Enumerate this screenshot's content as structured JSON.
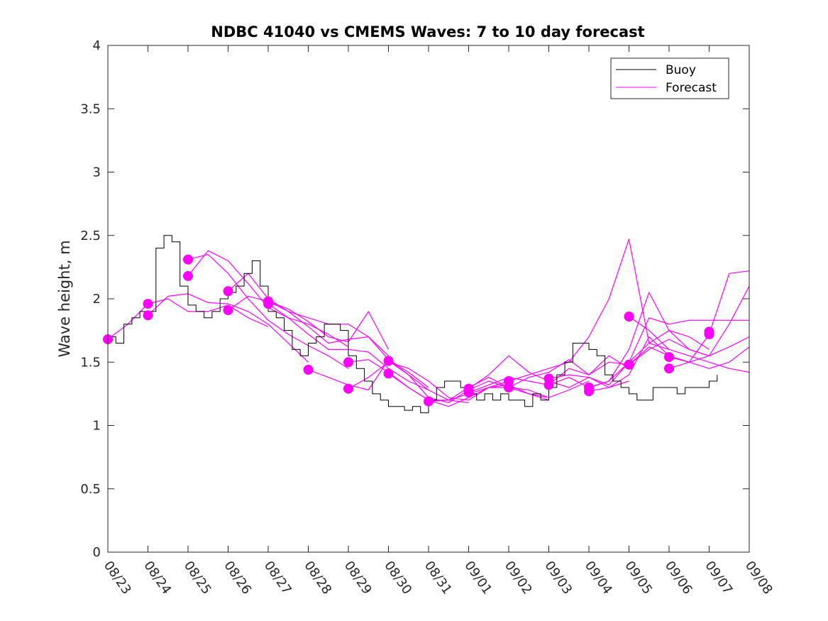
{
  "chart_data": {
    "type": "line",
    "title": "NDBC 41040 vs CMEMS Waves: 7 to 10 day forecast",
    "xlabel": "",
    "ylabel": "Wave height, m",
    "xlim": [
      0,
      16
    ],
    "ylim": [
      0,
      4
    ],
    "x_tick_labels": [
      "08/23",
      "08/24",
      "08/25",
      "08/26",
      "08/27",
      "08/28",
      "08/29",
      "08/30",
      "08/31",
      "09/01",
      "09/02",
      "09/03",
      "09/04",
      "09/05",
      "09/06",
      "09/07",
      "09/08"
    ],
    "y_tick_labels": [
      "0",
      "0.5",
      "1",
      "1.5",
      "2",
      "2.5",
      "3",
      "3.5",
      "4"
    ],
    "legend": {
      "position": "top-right",
      "entries": [
        "Buoy",
        "Forecast"
      ]
    },
    "colors": {
      "buoy": "#000000",
      "forecast": "#ff00ff"
    },
    "buoy_series": {
      "name": "Buoy",
      "x": [
        0,
        0.2,
        0.4,
        0.6,
        0.8,
        1.0,
        1.2,
        1.4,
        1.6,
        1.8,
        2.0,
        2.2,
        2.4,
        2.6,
        2.8,
        3.0,
        3.2,
        3.4,
        3.6,
        3.8,
        4.0,
        4.2,
        4.4,
        4.6,
        4.8,
        5.0,
        5.2,
        5.4,
        5.6,
        5.8,
        6.0,
        6.2,
        6.4,
        6.6,
        6.8,
        7.0,
        7.2,
        7.4,
        7.6,
        7.8,
        8.0,
        8.2,
        8.4,
        8.6,
        8.8,
        9.0,
        9.2,
        9.4,
        9.6,
        9.8,
        10.0,
        10.2,
        10.4,
        10.6,
        10.8,
        11.0,
        11.2,
        11.4,
        11.6,
        11.8,
        12.0,
        12.2,
        12.4,
        12.6,
        12.8,
        13.0,
        13.2,
        13.4,
        13.6,
        13.8,
        14.0,
        14.2,
        14.4,
        14.6,
        14.8,
        15.0,
        15.2
      ],
      "values": [
        1.7,
        1.65,
        1.8,
        1.85,
        1.9,
        1.9,
        2.4,
        2.5,
        2.45,
        2.1,
        1.95,
        1.9,
        1.85,
        1.9,
        2.0,
        2.05,
        2.1,
        2.2,
        2.3,
        2.1,
        1.9,
        1.85,
        1.75,
        1.6,
        1.55,
        1.65,
        1.7,
        1.8,
        1.8,
        1.75,
        1.55,
        1.45,
        1.35,
        1.25,
        1.2,
        1.15,
        1.15,
        1.12,
        1.15,
        1.1,
        1.2,
        1.3,
        1.35,
        1.35,
        1.3,
        1.25,
        1.2,
        1.25,
        1.2,
        1.25,
        1.2,
        1.2,
        1.15,
        1.25,
        1.2,
        1.3,
        1.4,
        1.5,
        1.65,
        1.65,
        1.6,
        1.55,
        1.4,
        1.35,
        1.3,
        1.25,
        1.2,
        1.2,
        1.3,
        1.3,
        1.3,
        1.25,
        1.3,
        1.3,
        1.3,
        1.35,
        1.4
      ]
    },
    "forecast_series": [
      {
        "name": "Forecast",
        "x": [
          0,
          0.5,
          1.0,
          1.5,
          2.0,
          2.5,
          3.0,
          3.5,
          4.0
        ],
        "values": [
          1.68,
          1.8,
          1.96,
          2.0,
          1.9,
          1.9,
          1.95,
          1.85,
          1.78
        ]
      },
      {
        "name": "Forecast",
        "x": [
          1.0,
          1.5,
          2.0,
          2.5,
          3.0,
          3.5,
          4.0,
          4.5,
          5.0
        ],
        "values": [
          1.87,
          2.02,
          2.04,
          1.97,
          1.96,
          1.9,
          1.8,
          1.65,
          1.5
        ]
      },
      {
        "name": "Forecast",
        "x": [
          2.0,
          2.5,
          3.0,
          3.5,
          4.0,
          4.5,
          5.0,
          5.5,
          6.0
        ],
        "values": [
          2.18,
          2.38,
          2.3,
          2.12,
          1.93,
          1.85,
          1.8,
          1.72,
          1.62
        ]
      },
      {
        "name": "Forecast",
        "x": [
          2.0,
          2.5,
          3.0,
          3.5,
          4.0,
          4.5,
          5.0,
          5.5,
          6.0
        ],
        "values": [
          2.31,
          2.35,
          2.2,
          2.0,
          1.83,
          1.72,
          1.63,
          1.55,
          1.45
        ]
      },
      {
        "name": "Forecast",
        "x": [
          3.0,
          3.5,
          4.0,
          4.5,
          5.0,
          5.5,
          6.0,
          6.5,
          7.0
        ],
        "values": [
          2.06,
          2.2,
          2.0,
          1.9,
          1.85,
          1.8,
          1.8,
          1.7,
          1.55
        ]
      },
      {
        "name": "Forecast",
        "x": [
          3.0,
          3.5,
          4.0,
          4.5,
          5.0,
          5.5,
          6.0,
          6.5,
          7.0
        ],
        "values": [
          1.91,
          2.02,
          1.98,
          1.92,
          1.82,
          1.7,
          1.66,
          1.9,
          1.6
        ]
      },
      {
        "name": "Forecast",
        "x": [
          4.0,
          4.5,
          5.0,
          5.5,
          6.0,
          6.5,
          7.0,
          7.5,
          8.0
        ],
        "values": [
          1.98,
          1.9,
          1.78,
          1.65,
          1.68,
          1.7,
          1.52,
          1.42,
          1.3
        ]
      },
      {
        "name": "Forecast",
        "x": [
          4.0,
          4.5,
          5.0,
          5.5,
          6.0,
          6.5,
          7.0,
          7.5,
          8.0
        ],
        "values": [
          1.96,
          1.85,
          1.72,
          1.6,
          1.6,
          1.58,
          1.45,
          1.35,
          1.28
        ]
      },
      {
        "name": "Forecast",
        "x": [
          5.0,
          5.5,
          6.0,
          6.5,
          7.0,
          7.5,
          8.0,
          8.5,
          9.0
        ],
        "values": [
          1.44,
          1.38,
          1.32,
          1.28,
          1.52,
          1.4,
          1.28,
          1.2,
          1.18
        ]
      },
      {
        "name": "Forecast",
        "x": [
          6.0,
          6.5,
          7.0,
          7.5,
          8.0,
          8.5,
          9.0,
          9.5,
          10.0
        ],
        "values": [
          1.29,
          1.38,
          1.5,
          1.45,
          1.35,
          1.22,
          1.2,
          1.3,
          1.35
        ]
      },
      {
        "name": "Forecast",
        "x": [
          6.0,
          6.5,
          7.0,
          7.5,
          8.0,
          8.5,
          9.0,
          9.5,
          10.0
        ],
        "values": [
          1.5,
          1.52,
          1.42,
          1.3,
          1.2,
          1.2,
          1.25,
          1.3,
          1.3
        ]
      },
      {
        "name": "Forecast",
        "x": [
          7.0,
          7.5,
          8.0,
          8.5,
          9.0,
          9.5,
          10.0,
          10.5,
          11.0
        ],
        "values": [
          1.51,
          1.4,
          1.22,
          1.18,
          1.28,
          1.35,
          1.3,
          1.28,
          1.22
        ]
      },
      {
        "name": "Forecast",
        "x": [
          7.0,
          7.5,
          8.0,
          8.5,
          9.0,
          9.5,
          10.0,
          10.5,
          11.0
        ],
        "values": [
          1.41,
          1.3,
          1.2,
          1.15,
          1.22,
          1.3,
          1.32,
          1.25,
          1.2
        ]
      },
      {
        "name": "Forecast",
        "x": [
          8.0,
          8.5,
          9.0,
          9.5,
          10.0,
          10.5,
          11.0,
          11.5,
          12.0
        ],
        "values": [
          1.19,
          1.2,
          1.3,
          1.38,
          1.3,
          1.25,
          1.22,
          1.28,
          1.35
        ]
      },
      {
        "name": "Forecast",
        "x": [
          9.0,
          9.5,
          10.0,
          10.5,
          11.0,
          11.5,
          12.0,
          12.5,
          13.0
        ],
        "values": [
          1.29,
          1.4,
          1.55,
          1.42,
          1.35,
          1.3,
          1.38,
          1.3,
          1.35
        ]
      },
      {
        "name": "Forecast",
        "x": [
          9.0,
          9.5,
          10.0,
          10.5,
          11.0,
          11.5,
          12.0,
          12.5,
          13.0
        ],
        "values": [
          1.26,
          1.32,
          1.38,
          1.35,
          1.32,
          1.45,
          1.4,
          1.55,
          1.45
        ]
      },
      {
        "name": "Forecast",
        "x": [
          10.0,
          10.5,
          11.0,
          11.5,
          12.0,
          12.5,
          13.0,
          13.5,
          14.0
        ],
        "values": [
          1.35,
          1.4,
          1.45,
          1.5,
          1.7,
          2.0,
          2.47,
          1.65,
          1.6
        ]
      },
      {
        "name": "Forecast",
        "x": [
          10.0,
          10.5,
          11.0,
          11.5,
          12.0,
          12.5,
          13.0,
          13.5,
          14.0
        ],
        "values": [
          1.3,
          1.38,
          1.42,
          1.52,
          1.4,
          1.5,
          1.48,
          1.62,
          1.55
        ]
      },
      {
        "name": "Forecast",
        "x": [
          11.0,
          11.5,
          12.0,
          12.5,
          13.0,
          13.5,
          14.0,
          14.5,
          15.0
        ],
        "values": [
          1.37,
          1.4,
          1.38,
          1.32,
          1.5,
          1.65,
          1.75,
          1.7,
          1.6
        ]
      },
      {
        "name": "Forecast",
        "x": [
          11.0,
          11.5,
          12.0,
          12.5,
          13.0,
          13.5,
          14.0,
          14.5,
          15.0
        ],
        "values": [
          1.32,
          1.38,
          1.3,
          1.35,
          1.6,
          2.05,
          1.75,
          1.6,
          1.55
        ]
      },
      {
        "name": "Forecast",
        "x": [
          12.0,
          12.5,
          13.0,
          13.5,
          14.0,
          14.5,
          15.0,
          15.5,
          16.0
        ],
        "values": [
          1.3,
          1.35,
          1.5,
          1.85,
          1.8,
          1.83,
          1.83,
          1.83,
          1.83
        ]
      },
      {
        "name": "Forecast",
        "x": [
          12.0,
          12.5,
          13.0,
          13.5,
          14.0,
          14.5,
          15.0,
          15.5,
          16.0
        ],
        "values": [
          1.27,
          1.3,
          1.4,
          1.7,
          1.55,
          1.5,
          1.45,
          1.5,
          1.62
        ]
      },
      {
        "name": "Forecast",
        "x": [
          13.0,
          13.5,
          14.0,
          14.5,
          15.0,
          15.5,
          16.0
        ],
        "values": [
          1.86,
          1.75,
          1.6,
          1.55,
          1.5,
          1.45,
          1.42
        ]
      },
      {
        "name": "Forecast",
        "x": [
          13.0,
          13.5,
          14.0,
          14.5,
          15.0,
          15.5,
          16.0
        ],
        "values": [
          1.48,
          1.6,
          1.68,
          1.6,
          1.55,
          1.62,
          1.7
        ]
      },
      {
        "name": "Forecast",
        "x": [
          14.0,
          14.5,
          15.0,
          15.5,
          16.0
        ],
        "values": [
          1.54,
          1.5,
          1.55,
          1.8,
          2.1
        ]
      },
      {
        "name": "Forecast",
        "x": [
          14.0,
          14.5,
          15.0,
          15.5,
          16.0
        ],
        "values": [
          1.45,
          1.5,
          1.72,
          2.2,
          2.22
        ]
      }
    ],
    "forecast_markers": {
      "x": [
        0,
        1,
        1,
        2,
        2,
        3,
        3,
        4,
        4,
        5,
        6,
        6,
        7,
        7,
        8,
        9,
        9,
        10,
        10,
        11,
        11,
        12,
        12,
        13,
        13,
        14,
        14,
        15,
        15
      ],
      "values": [
        1.68,
        1.96,
        1.87,
        2.31,
        2.18,
        2.06,
        1.91,
        1.98,
        1.96,
        1.44,
        1.5,
        1.29,
        1.51,
        1.41,
        1.19,
        1.29,
        1.26,
        1.35,
        1.3,
        1.37,
        1.32,
        1.3,
        1.27,
        1.86,
        1.48,
        1.54,
        1.45,
        1.74,
        1.72
      ]
    }
  }
}
